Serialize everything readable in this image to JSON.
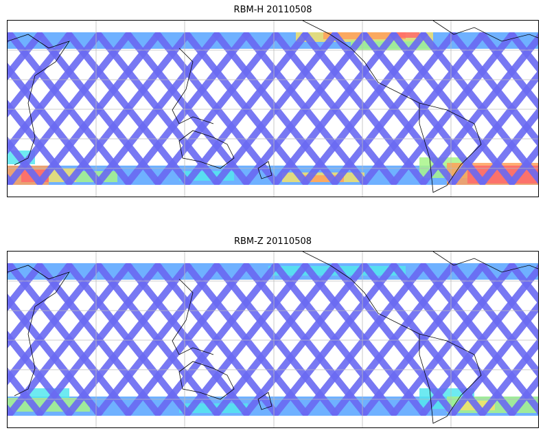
{
  "maps": [
    {
      "title": "RBM-H 20110508",
      "variant": "H"
    },
    {
      "title": "RBM-Z 20110508",
      "variant": "Z"
    }
  ],
  "colors": {
    "swath": "#6a6af2",
    "band": "#5fa8ff",
    "cyan": "#55e6ee",
    "green": "#a8f58a",
    "yellow": "#f5e36a",
    "orange": "#ffa05a",
    "red": "#ff6a6a",
    "grid": "#bbbbbb",
    "coast": "#000000"
  }
}
